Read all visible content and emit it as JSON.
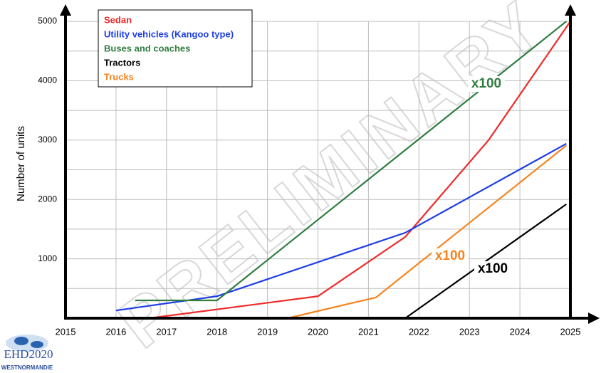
{
  "chart_data": {
    "type": "line",
    "ylabel": "Number of units",
    "xlim": [
      2015,
      2025
    ],
    "xticks": [
      2015,
      2016,
      2017,
      2018,
      2019,
      2020,
      2021,
      2022,
      2023,
      2024,
      2025
    ],
    "ylim": [
      0,
      5000
    ],
    "yticks": [
      1000,
      2000,
      3000,
      4000,
      5000
    ],
    "yminor_grid": [
      500,
      1500,
      2500,
      3500,
      4500
    ],
    "grid": true,
    "legend": "upper left",
    "series": [
      {
        "name": "Sedan",
        "color": "#ee2a2a",
        "x": [
          2016.66,
          2020.0,
          2021.73,
          2023.38,
          2025.0
        ],
        "values": [
          0,
          370,
          1370,
          3000,
          5000
        ]
      },
      {
        "name": "Utility vehicles (Kangoo type)",
        "color": "#1e3ee6",
        "x": [
          2016.0,
          2018.0,
          2021.73,
          2024.92
        ],
        "values": [
          130,
          370,
          1440,
          2940
        ]
      },
      {
        "name": "Buses and coaches",
        "color": "#2f7d3f",
        "x": [
          2016.38,
          2018.0,
          2024.92
        ],
        "values": [
          300,
          300,
          5000
        ]
      },
      {
        "name": "Tractors",
        "color": "#000000",
        "x": [
          2021.73,
          2024.92
        ],
        "values": [
          0,
          1920
        ]
      },
      {
        "name": "Trucks",
        "color": "#f5841f",
        "x": [
          2019.4,
          2021.15,
          2024.92
        ],
        "values": [
          0,
          350,
          2910
        ]
      }
    ],
    "annotations": [
      {
        "text": "x100",
        "color": "#2f7d3f"
      },
      {
        "text": "x100",
        "color": "#f5841f"
      },
      {
        "text": "x100",
        "color": "#000000"
      }
    ],
    "watermark": "PRELIMINARY",
    "logo": {
      "title": "EHD2020",
      "subtitle": "WESTNORMANDIE"
    }
  }
}
